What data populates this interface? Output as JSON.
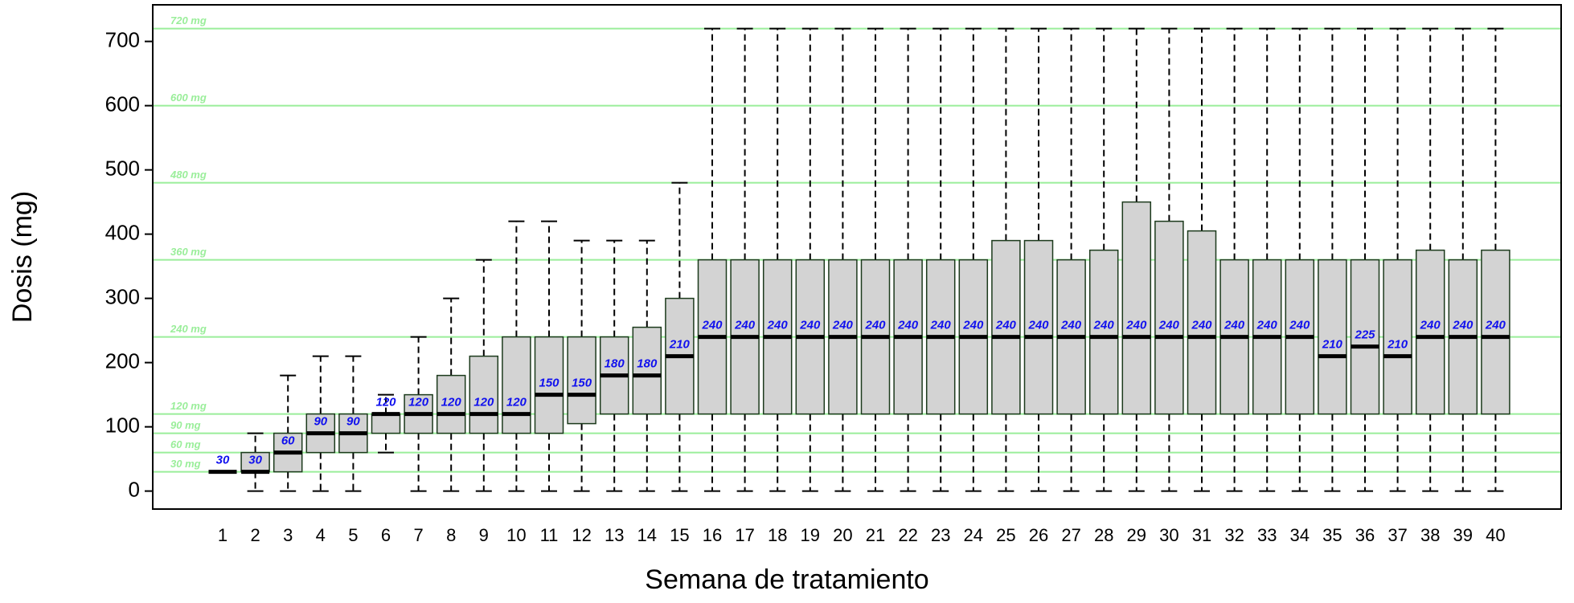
{
  "chart_data": {
    "type": "box",
    "x_label": "Semana de tratamiento",
    "y_label": "Dosis (mg)",
    "categories": [
      "1",
      "2",
      "3",
      "4",
      "5",
      "6",
      "7",
      "8",
      "9",
      "10",
      "11",
      "12",
      "13",
      "14",
      "15",
      "16",
      "17",
      "18",
      "19",
      "20",
      "21",
      "22",
      "23",
      "24",
      "25",
      "26",
      "27",
      "28",
      "29",
      "30",
      "31",
      "32",
      "33",
      "34",
      "35",
      "36",
      "37",
      "38",
      "39",
      "40"
    ],
    "whisker_low": [
      30,
      0,
      0,
      0,
      0,
      60,
      0,
      0,
      0,
      0,
      0,
      0,
      0,
      0,
      0,
      0,
      0,
      0,
      0,
      0,
      0,
      0,
      0,
      0,
      0,
      0,
      0,
      0,
      0,
      0,
      0,
      0,
      0,
      0,
      0,
      0,
      0,
      0,
      0,
      0
    ],
    "q1": [
      30,
      30,
      30,
      60,
      60,
      90,
      90,
      90,
      90,
      90,
      90,
      105,
      120,
      120,
      120,
      120,
      120,
      120,
      120,
      120,
      120,
      120,
      120,
      120,
      120,
      120,
      120,
      120,
      120,
      120,
      120,
      120,
      120,
      120,
      120,
      120,
      120,
      120,
      120,
      120
    ],
    "median": [
      30,
      30,
      60,
      90,
      90,
      120,
      120,
      120,
      120,
      120,
      150,
      150,
      180,
      180,
      210,
      240,
      240,
      240,
      240,
      240,
      240,
      240,
      240,
      240,
      240,
      240,
      240,
      240,
      240,
      240,
      240,
      240,
      240,
      240,
      210,
      225,
      210,
      240,
      240,
      240
    ],
    "q3": [
      30,
      60,
      90,
      120,
      120,
      120,
      150,
      180,
      210,
      240,
      240,
      240,
      240,
      255,
      300,
      360,
      360,
      360,
      360,
      360,
      360,
      360,
      360,
      360,
      390,
      390,
      360,
      375,
      450,
      420,
      405,
      360,
      360,
      360,
      360,
      360,
      360,
      375,
      360,
      375
    ],
    "whisker_high": [
      30,
      90,
      180,
      210,
      210,
      150,
      240,
      300,
      360,
      420,
      420,
      390,
      390,
      390,
      480,
      720,
      720,
      720,
      720,
      720,
      720,
      720,
      720,
      720,
      720,
      720,
      720,
      720,
      720,
      720,
      720,
      720,
      720,
      720,
      720,
      720,
      720,
      720,
      720,
      720
    ],
    "ylim": [
      -28,
      757
    ],
    "yticks": [
      0,
      100,
      200,
      300,
      400,
      500,
      600,
      700
    ],
    "reference_lines": [
      {
        "value": 30,
        "label": "30 mg"
      },
      {
        "value": 60,
        "label": "60 mg"
      },
      {
        "value": 90,
        "label": "90 mg"
      },
      {
        "value": 120,
        "label": "120 mg"
      },
      {
        "value": 240,
        "label": "240 mg"
      },
      {
        "value": 360,
        "label": "360 mg"
      },
      {
        "value": 480,
        "label": "480 mg"
      },
      {
        "value": 600,
        "label": "600 mg"
      },
      {
        "value": 720,
        "label": "720 mg"
      }
    ],
    "box_color": "#d3d3d3",
    "edge_color": "#1c3a1c",
    "median_label_color": "#1010ee",
    "reference_color": "#9aee9a"
  }
}
